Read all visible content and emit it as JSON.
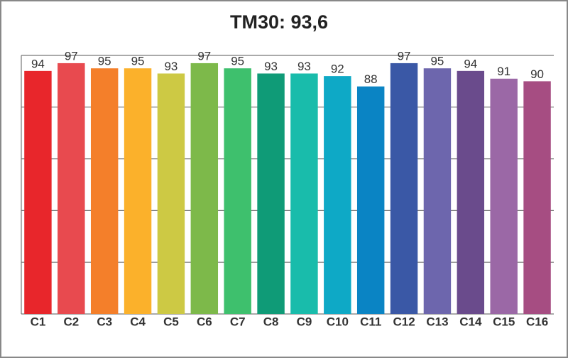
{
  "chart_data": {
    "type": "bar",
    "title": "TM30: 93,6",
    "categories": [
      "C1",
      "C2",
      "C3",
      "C4",
      "C5",
      "C6",
      "C7",
      "C8",
      "C9",
      "C10",
      "C11",
      "C12",
      "C13",
      "C14",
      "C15",
      "C16"
    ],
    "values": [
      94,
      97,
      95,
      95,
      93,
      97,
      95,
      93,
      93,
      92,
      88,
      97,
      95,
      94,
      91,
      90
    ],
    "colors": [
      "#e8262b",
      "#e84a4f",
      "#f47f2a",
      "#fbb12b",
      "#cdc944",
      "#7db94a",
      "#3ec06d",
      "#0f9b77",
      "#19bcab",
      "#0ea9c6",
      "#0a84c4",
      "#3a58a6",
      "#6d66ad",
      "#6a4b8c",
      "#9b68a6",
      "#a64d82"
    ],
    "ylim": [
      0,
      100
    ],
    "yticks": [
      0,
      20,
      40,
      60,
      80,
      100
    ],
    "grid": true
  }
}
